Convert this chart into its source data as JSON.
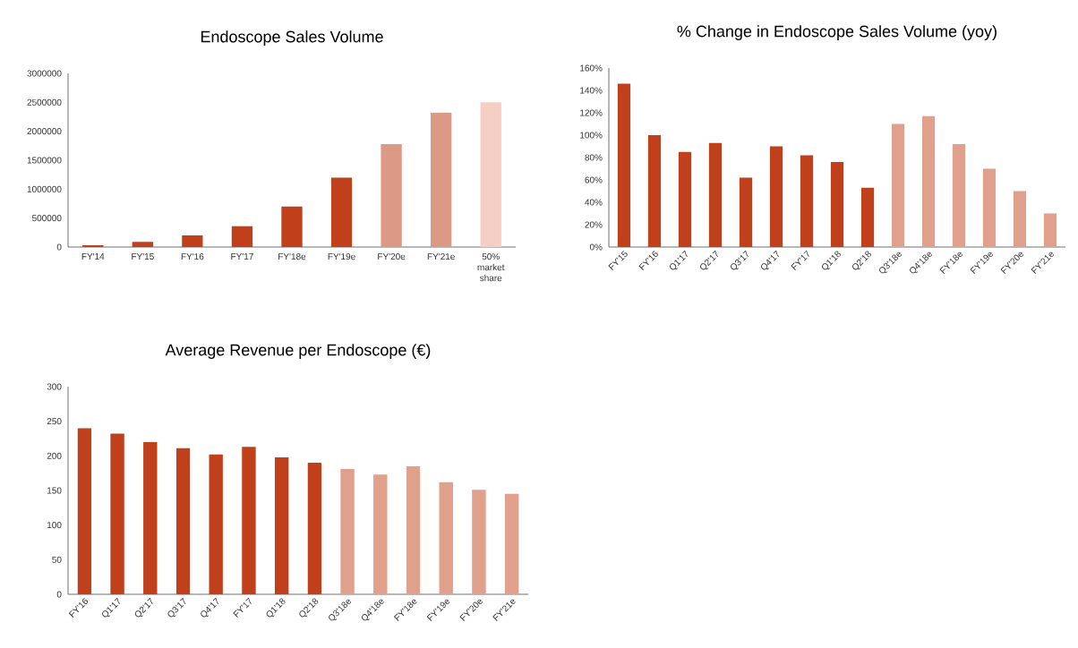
{
  "chart_data": [
    {
      "type": "bar",
      "title": "Endoscope Sales Volume",
      "categories": [
        "FY'14",
        "FY'15",
        "FY'16",
        "FY'17",
        "FY'18e",
        "FY'19e",
        "FY'20e",
        "FY'21e",
        "50% market share"
      ],
      "values": [
        30000,
        90000,
        200000,
        360000,
        700000,
        1200000,
        1780000,
        2320000,
        2500000
      ],
      "colors": [
        "#c0401c",
        "#c0401c",
        "#c0401c",
        "#c0401c",
        "#c0401c",
        "#c0401c",
        "#dc9a86",
        "#dc9a86",
        "#f6cfc4"
      ],
      "ylim": [
        0,
        3000000
      ],
      "yticks": [
        0,
        500000,
        1000000,
        1500000,
        2000000,
        2500000,
        3000000
      ]
    },
    {
      "type": "bar",
      "title": "% Change in Endoscope Sales Volume (yoy)",
      "categories": [
        "FY'15",
        "FY'16",
        "Q1'17",
        "Q2'17",
        "Q3'17",
        "Q4'17",
        "FY'17",
        "Q1'18",
        "Q2'18",
        "Q3'18e",
        "Q4'18e",
        "FY'18e",
        "FY'19e",
        "FY'20e",
        "FY'21e"
      ],
      "values": [
        146,
        100,
        85,
        93,
        62,
        90,
        82,
        76,
        53,
        110,
        117,
        92,
        70,
        50,
        30
      ],
      "colors": [
        "#c0401c",
        "#c0401c",
        "#c0401c",
        "#c0401c",
        "#c0401c",
        "#c0401c",
        "#c0401c",
        "#c0401c",
        "#c0401c",
        "#e0a08c",
        "#e0a08c",
        "#e0a08c",
        "#e0a08c",
        "#e0a08c",
        "#e0a08c"
      ],
      "ylim": [
        0,
        160
      ],
      "yticks": [
        {
          "value": 0,
          "label": "0%"
        },
        {
          "value": 20,
          "label": "20%"
        },
        {
          "value": 40,
          "label": "40%"
        },
        {
          "value": 60,
          "label": "60%"
        },
        {
          "value": 80,
          "label": "80%"
        },
        {
          "value": 100,
          "label": "100%"
        },
        {
          "value": 120,
          "label": "120%"
        },
        {
          "value": 140,
          "label": "140%"
        },
        {
          "value": 160,
          "label": "160%"
        }
      ]
    },
    {
      "type": "bar",
      "title": "Average Revenue per Endoscope (€)",
      "categories": [
        "FY'16",
        "Q1'17",
        "Q2'17",
        "Q3'17",
        "Q4'17",
        "FY'17",
        "Q1'18",
        "Q2'18",
        "Q3'18e",
        "Q4'18e",
        "FY'18e",
        "FY'19e",
        "FY'20e",
        "FY'21e"
      ],
      "values": [
        240,
        232,
        220,
        211,
        202,
        213,
        198,
        190,
        181,
        173,
        185,
        162,
        151,
        145
      ],
      "colors": [
        "#c0401c",
        "#c0401c",
        "#c0401c",
        "#c0401c",
        "#c0401c",
        "#c0401c",
        "#c0401c",
        "#c0401c",
        "#e0a08c",
        "#e0a08c",
        "#e0a08c",
        "#e0a08c",
        "#e0a08c",
        "#e0a08c"
      ],
      "ylim": [
        0,
        300
      ],
      "yticks": [
        0,
        50,
        100,
        150,
        200,
        250,
        300
      ]
    }
  ]
}
